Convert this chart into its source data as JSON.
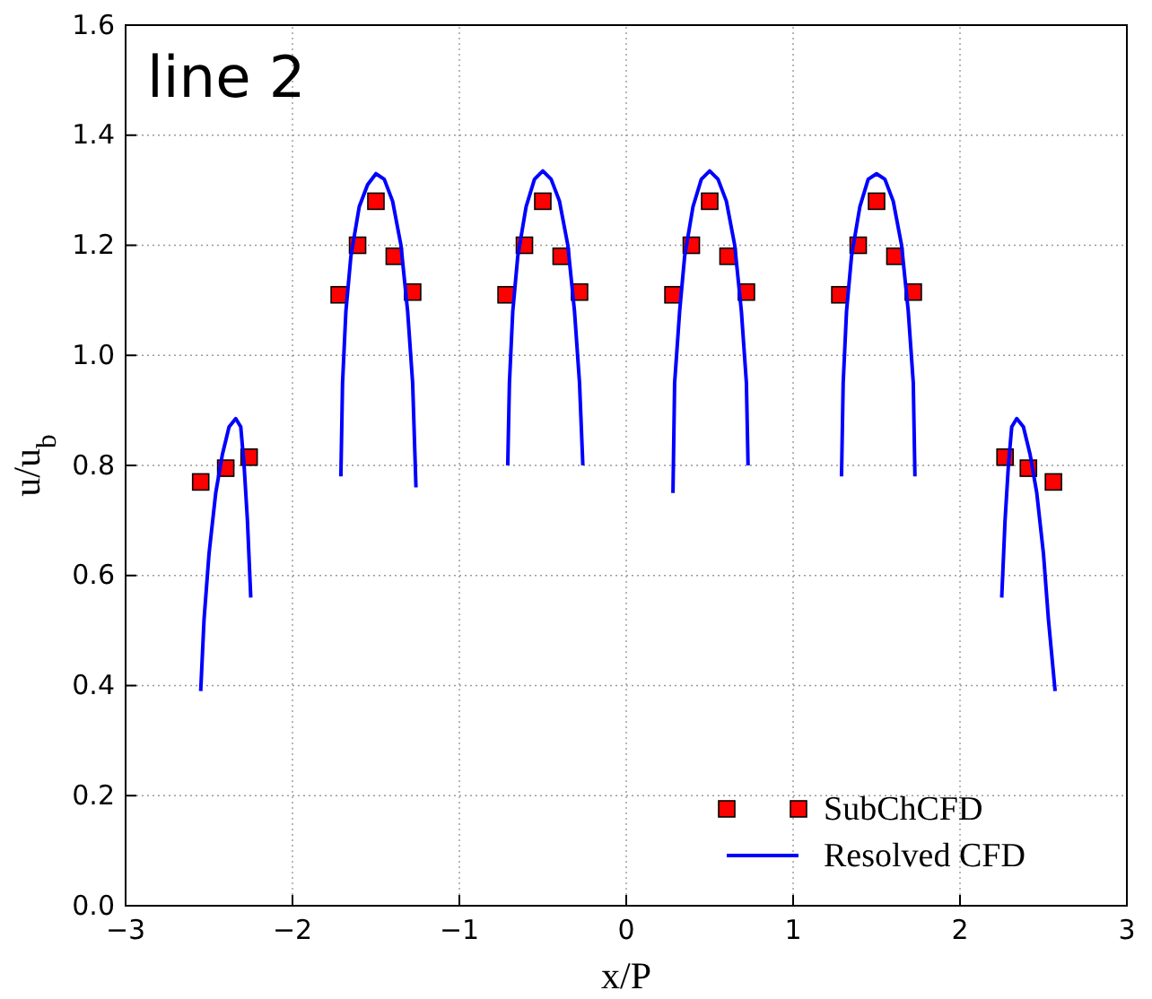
{
  "chart_data": {
    "type": "scatter",
    "xlabel": "x/P",
    "ylabel": "u/u$_{b}$",
    "annotations": [
      "line 2"
    ],
    "xlim": [
      -3,
      3
    ],
    "ylim": [
      0,
      1.6
    ],
    "xticks": [
      {
        "value": -3,
        "label": "−3"
      },
      {
        "value": -2,
        "label": "−2"
      },
      {
        "value": -1,
        "label": "−1"
      },
      0,
      1,
      2,
      3
    ],
    "yticks": [
      {
        "value": 0,
        "label": "0.0"
      },
      {
        "value": 0.2,
        "label": "0.2"
      },
      {
        "value": 0.4,
        "label": "0.4"
      },
      {
        "value": 0.6,
        "label": "0.6"
      },
      {
        "value": 0.8,
        "label": "0.8"
      },
      {
        "value": 1,
        "label": "1.0"
      },
      {
        "value": 1.2,
        "label": "1.2"
      },
      {
        "value": 1.4,
        "label": "1.4"
      },
      {
        "value": 1.6,
        "label": "1.6"
      }
    ],
    "grid": true,
    "legend": "bottom right",
    "series": [
      {
        "name": "SubChCFD",
        "marker": "square",
        "color": "#ff0000",
        "x": [
          -2.55,
          -2.4,
          -2.26,
          -1.72,
          -1.61,
          -1.5,
          -1.39,
          -1.28,
          -0.72,
          -0.61,
          -0.5,
          -0.39,
          -0.28,
          0.28,
          0.39,
          0.5,
          0.61,
          0.72,
          1.28,
          1.39,
          1.5,
          1.61,
          1.72,
          2.27,
          2.41,
          2.56
        ],
        "values": [
          0.77,
          0.795,
          0.815,
          1.11,
          1.2,
          1.28,
          1.18,
          1.115,
          1.11,
          1.2,
          1.28,
          1.18,
          1.115,
          1.11,
          1.2,
          1.28,
          1.18,
          1.115,
          1.11,
          1.2,
          1.28,
          1.18,
          1.115,
          0.815,
          0.795,
          0.77
        ]
      },
      {
        "name": "Resolved CFD",
        "type": "line",
        "line_style": "solid",
        "color": "#0000ff",
        "x": [
          -2.55,
          -2.53,
          -2.5,
          -2.46,
          -2.42,
          -2.38,
          -2.34,
          -2.31,
          -2.29,
          -2.27,
          -2.25,
          -2.0,
          -1.71,
          -1.7,
          -1.68,
          -1.65,
          -1.6,
          -1.55,
          -1.5,
          -1.45,
          -1.4,
          -1.35,
          -1.31,
          -1.28,
          -1.26,
          -1.0,
          -0.71,
          -0.7,
          -0.68,
          -0.65,
          -0.6,
          -0.55,
          -0.5,
          -0.45,
          -0.4,
          -0.35,
          -0.31,
          -0.28,
          -0.26,
          0.0,
          0.28,
          0.29,
          0.32,
          0.35,
          0.4,
          0.45,
          0.5,
          0.55,
          0.6,
          0.65,
          0.69,
          0.72,
          0.73,
          1.0,
          1.29,
          1.3,
          1.32,
          1.35,
          1.4,
          1.45,
          1.5,
          1.55,
          1.6,
          1.65,
          1.69,
          1.72,
          1.73,
          2.0,
          2.25,
          2.27,
          2.29,
          2.31,
          2.34,
          2.38,
          2.42,
          2.46,
          2.5,
          2.53,
          2.57
        ],
        "values": [
          0.39,
          0.52,
          0.64,
          0.75,
          0.82,
          0.87,
          0.885,
          0.87,
          0.8,
          0.7,
          0.56,
          null,
          0.78,
          0.95,
          1.08,
          1.18,
          1.27,
          1.31,
          1.33,
          1.32,
          1.28,
          1.2,
          1.08,
          0.95,
          0.76,
          null,
          0.8,
          0.95,
          1.08,
          1.18,
          1.27,
          1.32,
          1.335,
          1.32,
          1.28,
          1.2,
          1.08,
          0.95,
          0.8,
          null,
          0.75,
          0.95,
          1.08,
          1.18,
          1.27,
          1.32,
          1.335,
          1.32,
          1.28,
          1.2,
          1.08,
          0.95,
          0.8,
          null,
          0.78,
          0.95,
          1.08,
          1.18,
          1.27,
          1.32,
          1.33,
          1.32,
          1.28,
          1.2,
          1.08,
          0.95,
          0.78,
          null,
          0.56,
          0.7,
          0.8,
          0.87,
          0.885,
          0.87,
          0.82,
          0.75,
          0.64,
          0.52,
          0.39
        ]
      }
    ]
  }
}
